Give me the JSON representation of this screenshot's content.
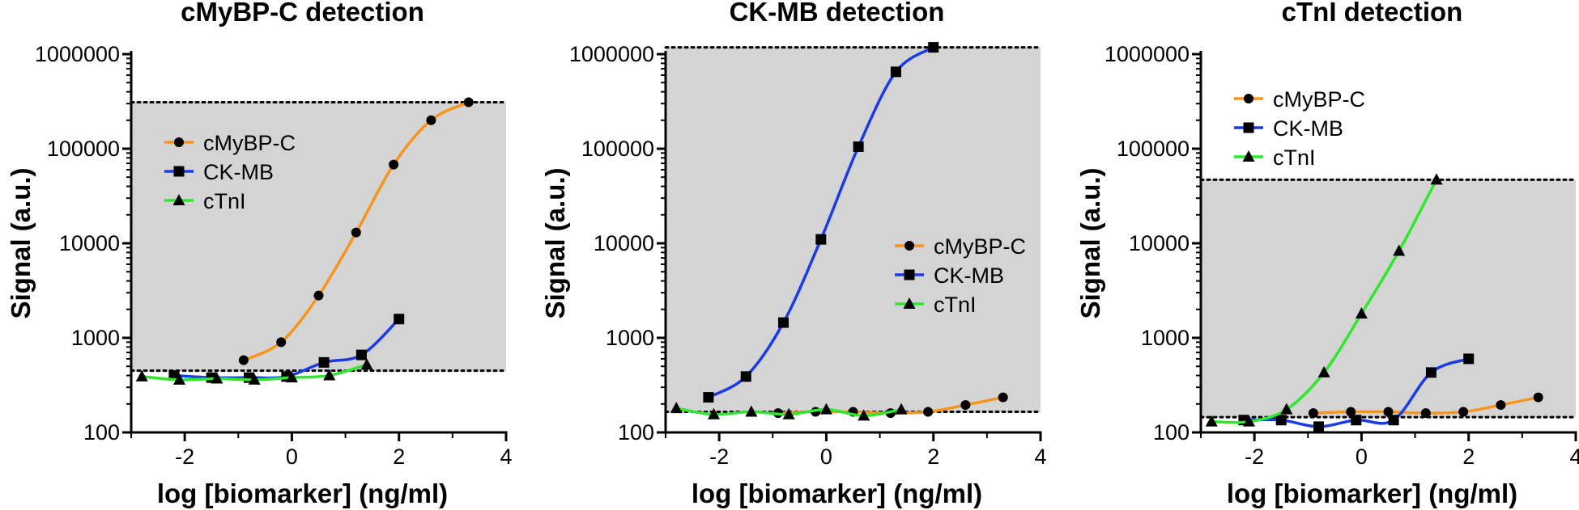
{
  "chart_data": [
    {
      "type": "line",
      "title": "cMyBP-C detection",
      "xlabel": "log [biomarker] (ng/ml)",
      "ylabel": "Signal (a.u.)",
      "xlim": [
        -3,
        4
      ],
      "ylim": [
        100,
        1000000
      ],
      "yscale": "log",
      "x_ticks": [
        -2,
        0,
        2,
        4
      ],
      "x_tick_labels": [
        "-2",
        "0",
        "2",
        "4"
      ],
      "y_ticks": [
        100,
        1000,
        10000,
        100000,
        1000000
      ],
      "y_tick_labels": [
        "100",
        "1000",
        "10000",
        "100000",
        "1000000"
      ],
      "shaded_range": [
        450,
        310000
      ],
      "legend_position": "top-left",
      "series": [
        {
          "name": "cMyBP-C",
          "marker": "circle",
          "color": "#f7941d",
          "x": [
            -0.9,
            -0.2,
            0.5,
            1.2,
            1.9,
            2.6,
            3.3
          ],
          "y": [
            580,
            900,
            2800,
            13000,
            68000,
            200000,
            310000
          ]
        },
        {
          "name": "CK-MB",
          "marker": "square",
          "color": "#1a3be8",
          "x": [
            -2.2,
            -1.5,
            -0.8,
            -0.1,
            0.6,
            1.3,
            2.0
          ],
          "y": [
            400,
            380,
            380,
            390,
            550,
            660,
            1580
          ]
        },
        {
          "name": "cTnI",
          "marker": "triangle",
          "color": "#2ee82e",
          "x": [
            -2.8,
            -2.1,
            -1.4,
            -0.7,
            0.0,
            0.7,
            1.4
          ],
          "y": [
            390,
            360,
            370,
            360,
            380,
            400,
            520
          ]
        }
      ]
    },
    {
      "type": "line",
      "title": "CK-MB detection",
      "xlabel": "log [biomarker] (ng/ml)",
      "ylabel": "Signal (a.u.)",
      "xlim": [
        -3,
        4
      ],
      "ylim": [
        100,
        1000000
      ],
      "yscale": "log",
      "x_ticks": [
        -2,
        0,
        2,
        4
      ],
      "x_tick_labels": [
        "-2",
        "0",
        "2",
        "4"
      ],
      "y_ticks": [
        100,
        1000,
        10000,
        100000,
        1000000
      ],
      "y_tick_labels": [
        "100",
        "1000",
        "10000",
        "100000",
        "1000000"
      ],
      "shaded_range": [
        165,
        1180000
      ],
      "legend_position": "center-right",
      "series": [
        {
          "name": "cMyBP-C",
          "marker": "circle",
          "color": "#f7941d",
          "x": [
            -0.9,
            -0.2,
            0.5,
            1.2,
            1.9,
            2.6,
            3.3
          ],
          "y": [
            160,
            165,
            165,
            160,
            165,
            195,
            235
          ]
        },
        {
          "name": "CK-MB",
          "marker": "square",
          "color": "#1a3be8",
          "x": [
            -2.2,
            -1.5,
            -0.8,
            -0.1,
            0.6,
            1.3,
            2.0
          ],
          "y": [
            235,
            390,
            1450,
            11000,
            105000,
            650000,
            1180000
          ]
        },
        {
          "name": "cTnI",
          "marker": "triangle",
          "color": "#2ee82e",
          "x": [
            -2.8,
            -2.1,
            -1.4,
            -0.7,
            0.0,
            0.7,
            1.4
          ],
          "y": [
            180,
            155,
            165,
            155,
            175,
            150,
            175
          ]
        }
      ]
    },
    {
      "type": "line",
      "title": "cTnI detection",
      "xlabel": "log [biomarker] (ng/ml)",
      "ylabel": "Signal (a.u.)",
      "xlim": [
        -3,
        4
      ],
      "ylim": [
        100,
        1000000
      ],
      "yscale": "log",
      "x_ticks": [
        -2,
        0,
        2,
        4
      ],
      "x_tick_labels": [
        "-2",
        "0",
        "2",
        "4"
      ],
      "y_ticks": [
        100,
        1000,
        10000,
        100000,
        1000000
      ],
      "y_tick_labels": [
        "100",
        "1000",
        "10000",
        "100000",
        "1000000"
      ],
      "shaded_range": [
        145,
        47000
      ],
      "legend_position": "top-left",
      "series": [
        {
          "name": "cMyBP-C",
          "marker": "circle",
          "color": "#f7941d",
          "x": [
            -0.9,
            -0.2,
            0.5,
            1.2,
            1.9,
            2.6,
            3.3
          ],
          "y": [
            160,
            165,
            165,
            160,
            165,
            195,
            235
          ]
        },
        {
          "name": "CK-MB",
          "marker": "square",
          "color": "#1a3be8",
          "x": [
            -2.2,
            -1.5,
            -0.8,
            -0.1,
            0.6,
            1.3,
            2.0
          ],
          "y": [
            135,
            135,
            115,
            135,
            135,
            430,
            600
          ]
        },
        {
          "name": "cTnI",
          "marker": "triangle",
          "color": "#2ee82e",
          "x": [
            -2.8,
            -2.1,
            -1.4,
            -0.7,
            0.0,
            0.7,
            1.4
          ],
          "y": [
            130,
            130,
            175,
            430,
            1800,
            8300,
            47000
          ]
        }
      ]
    }
  ]
}
